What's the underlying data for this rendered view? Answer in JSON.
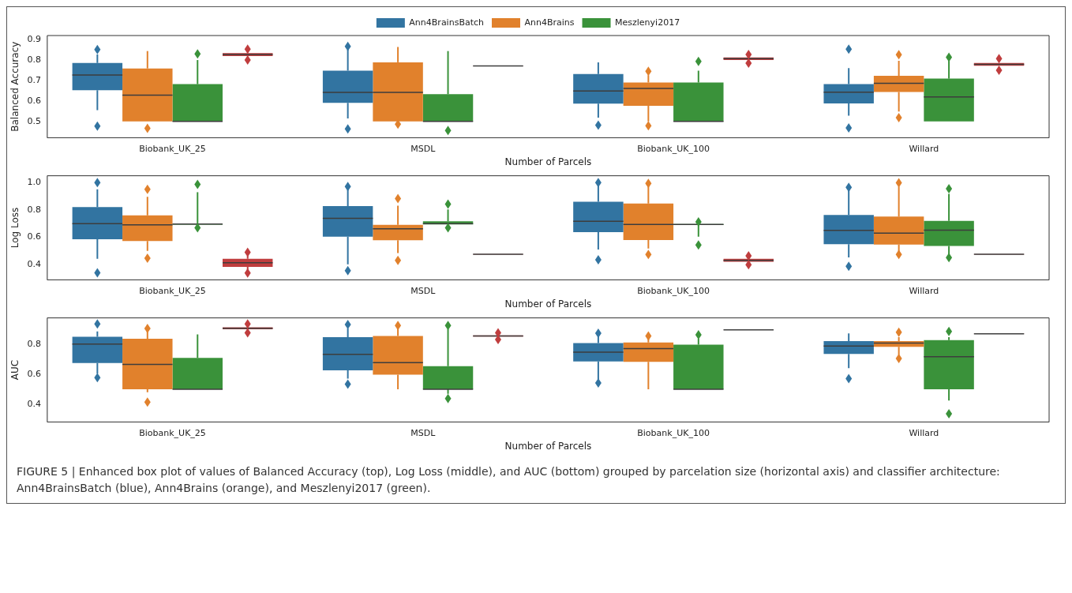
{
  "chart_data": [
    {
      "type": "box",
      "categories": [
        "Biobank_UK_25",
        "MSDL",
        "Biobank_UK_100",
        "Willard"
      ],
      "xlabel": "Number of Parcels",
      "ylabel": "Balanced Accuracy",
      "ylim": [
        0.42,
        0.92
      ],
      "yticks": [
        0.5,
        0.6,
        0.7,
        0.8,
        0.9
      ],
      "legend": "top",
      "series": [
        {
          "name": "Ann4BrainsBatch",
          "color": "#3274a1",
          "boxes": [
            {
              "low": 0.555,
              "q1": 0.652,
              "median": 0.727,
              "q3": 0.786,
              "high": 0.827,
              "outliers": [
                0.477,
                0.851
              ]
            },
            {
              "low": 0.514,
              "q1": 0.591,
              "median": 0.642,
              "q3": 0.748,
              "high": 0.851,
              "outliers": [
                0.463,
                0.867
              ]
            },
            {
              "low": 0.518,
              "q1": 0.587,
              "median": 0.649,
              "q3": 0.732,
              "high": 0.789,
              "outliers": [
                0.481
              ]
            },
            {
              "low": 0.528,
              "q1": 0.588,
              "median": 0.643,
              "q3": 0.682,
              "high": 0.761,
              "outliers": [
                0.468,
                0.853
              ]
            }
          ]
        },
        {
          "name": "Ann4Brains",
          "color": "#e1812c",
          "boxes": [
            {
              "low": 0.5,
              "q1": 0.5,
              "median": 0.628,
              "q3": 0.759,
              "high": 0.844,
              "outliers": [
                0.466
              ]
            },
            {
              "low": 0.5,
              "q1": 0.5,
              "median": 0.642,
              "q3": 0.789,
              "high": 0.864,
              "outliers": [
                0.486
              ]
            },
            {
              "low": 0.5,
              "q1": 0.576,
              "median": 0.661,
              "q3": 0.69,
              "high": 0.726,
              "outliers": [
                0.479,
                0.745
              ]
            },
            {
              "low": 0.548,
              "q1": 0.644,
              "median": 0.686,
              "q3": 0.723,
              "high": 0.796,
              "outliers": [
                0.518,
                0.826
              ]
            }
          ]
        },
        {
          "name": "Meszlenyi2017",
          "color": "#3a923a",
          "boxes": [
            {
              "low": 0.5,
              "q1": 0.5,
              "median": 0.5,
              "q3": 0.682,
              "high": 0.8,
              "outliers": [
                0.83
              ]
            },
            {
              "low": 0.5,
              "q1": 0.5,
              "median": 0.5,
              "q3": 0.633,
              "high": 0.844,
              "outliers": [
                0.455
              ]
            },
            {
              "low": 0.5,
              "q1": 0.5,
              "median": 0.5,
              "q3": 0.69,
              "high": 0.748,
              "outliers": [
                0.793
              ]
            },
            {
              "low": 0.5,
              "q1": 0.5,
              "median": 0.62,
              "q3": 0.709,
              "high": 0.796,
              "outliers": [
                0.814
              ]
            }
          ]
        },
        {
          "color": "#c03d3e",
          "boxes": [
            {
              "low": 0.82,
              "q1": 0.82,
              "median": 0.827,
              "q3": 0.834,
              "high": 0.834,
              "outliers": [
                0.8,
                0.853
              ]
            },
            {
              "low": 0.77,
              "q1": 0.77,
              "median": 0.771,
              "q3": 0.772,
              "high": 0.772
            },
            {
              "low": 0.797,
              "q1": 0.8,
              "median": 0.807,
              "q3": 0.813,
              "high": 0.817,
              "outliers": [
                0.785,
                0.827
              ]
            },
            {
              "low": 0.772,
              "q1": 0.772,
              "median": 0.779,
              "q3": 0.786,
              "high": 0.786,
              "outliers": [
                0.75,
                0.807
              ]
            }
          ]
        }
      ]
    },
    {
      "type": "box",
      "categories": [
        "Biobank_UK_25",
        "MSDL",
        "Biobank_UK_100",
        "Willard"
      ],
      "xlabel": "Number of Parcels",
      "ylabel": "Log Loss",
      "ylim": [
        0.29,
        1.05
      ],
      "yticks": [
        0.4,
        0.6,
        0.8,
        {
          "value": 1,
          "label": "1.0"
        }
      ],
      "series": [
        {
          "color": "#3274a1",
          "boxes": [
            {
              "low": 0.443,
              "q1": 0.586,
              "median": 0.7,
              "q3": 0.821,
              "high": 0.951,
              "outliers": [
                0.342,
                1.0
              ]
            },
            {
              "low": 0.404,
              "q1": 0.605,
              "median": 0.739,
              "q3": 0.828,
              "high": 0.957,
              "outliers": [
                0.357,
                0.972
              ]
            },
            {
              "low": 0.512,
              "q1": 0.638,
              "median": 0.717,
              "q3": 0.86,
              "high": 0.98,
              "outliers": [
                0.437,
                1.0
              ]
            },
            {
              "low": 0.454,
              "q1": 0.551,
              "median": 0.651,
              "q3": 0.763,
              "high": 0.944,
              "outliers": [
                0.389,
                0.966
              ]
            }
          ]
        },
        {
          "color": "#e1812c",
          "boxes": [
            {
              "low": 0.502,
              "q1": 0.573,
              "median": 0.692,
              "q3": 0.761,
              "high": 0.897,
              "outliers": [
                0.448,
                0.951
              ]
            },
            {
              "low": 0.486,
              "q1": 0.579,
              "median": 0.663,
              "q3": 0.692,
              "high": 0.832,
              "outliers": [
                0.432,
                0.884
              ]
            },
            {
              "low": 0.519,
              "q1": 0.581,
              "median": 0.694,
              "q3": 0.847,
              "high": 0.972,
              "outliers": [
                0.476,
                0.994
              ]
            },
            {
              "low": 0.497,
              "q1": 0.547,
              "median": 0.631,
              "q3": 0.752,
              "high": 0.972,
              "outliers": [
                0.476,
                0.998
              ]
            }
          ]
        },
        {
          "color": "#3a923a",
          "boxes": [
            {
              "low": 0.693,
              "q1": 0.693,
              "median": 0.697,
              "q3": 0.701,
              "high": 0.93,
              "outliers": [
                0.67,
                0.987
              ]
            },
            {
              "low": 0.695,
              "q1": 0.695,
              "median": 0.7,
              "q3": 0.717,
              "high": 0.804,
              "outliers": [
                0.67,
                0.843
              ]
            },
            {
              "low": 0.605,
              "q1": 0.69,
              "median": 0.694,
              "q3": 0.698,
              "high": 0.7,
              "outliers": [
                0.545,
                0.713
              ]
            },
            {
              "low": 0.476,
              "q1": 0.538,
              "median": 0.653,
              "q3": 0.72,
              "high": 0.918,
              "outliers": [
                0.452,
                0.955
              ]
            }
          ]
        },
        {
          "color": "#c03d3e",
          "boxes": [
            {
              "low": 0.363,
              "q1": 0.385,
              "median": 0.415,
              "q3": 0.443,
              "high": 0.465,
              "outliers": [
                0.34,
                0.491
              ]
            },
            {
              "low": 0.476,
              "q1": 0.476,
              "median": 0.477,
              "q3": 0.478,
              "high": 0.478
            },
            {
              "low": 0.422,
              "q1": 0.422,
              "median": 0.432,
              "q3": 0.443,
              "high": 0.443,
              "outliers": [
                0.4,
                0.465
              ]
            },
            {
              "low": 0.476,
              "q1": 0.476,
              "median": 0.477,
              "q3": 0.478,
              "high": 0.478
            }
          ]
        }
      ]
    },
    {
      "type": "box",
      "categories": [
        "Biobank_UK_25",
        "MSDL",
        "Biobank_UK_100",
        "Willard"
      ],
      "xlabel": "Number of Parcels",
      "ylabel": "AUC",
      "ylim": [
        0.28,
        0.98
      ],
      "yticks": [
        0.4,
        0.6,
        0.8
      ],
      "annotations": [
        "FIGURE 5 | Enhanced box plot of values of Balanced Accuracy (top), Log Loss (middle), and AUC (bottom) grouped by parcelation size (horizontal axis) and classifier architecture: Ann4BrainsBatch (blue), Ann4Brains (orange), and Meszlenyi2017 (green)."
      ],
      "series": [
        {
          "color": "#3274a1",
          "boxes": [
            {
              "low": 0.606,
              "q1": 0.677,
              "median": 0.804,
              "q3": 0.853,
              "high": 0.889,
              "outliers": [
                0.578,
                0.939
              ]
            },
            {
              "low": 0.572,
              "q1": 0.628,
              "median": 0.735,
              "q3": 0.851,
              "high": 0.909,
              "outliers": [
                0.535,
                0.935
              ]
            },
            {
              "low": 0.566,
              "q1": 0.687,
              "median": 0.75,
              "q3": 0.81,
              "high": 0.86,
              "outliers": [
                0.543,
                0.877
              ]
            },
            {
              "low": 0.642,
              "q1": 0.737,
              "median": 0.79,
              "q3": 0.824,
              "high": 0.875,
              "outliers": [
                0.572
              ]
            }
          ]
        },
        {
          "color": "#e1812c",
          "boxes": [
            {
              "low": 0.48,
              "q1": 0.5,
              "median": 0.667,
              "q3": 0.84,
              "high": 0.889,
              "outliers": [
                0.414,
                0.909
              ]
            },
            {
              "low": 0.5,
              "q1": 0.598,
              "median": 0.679,
              "q3": 0.859,
              "high": 0.915,
              "outliers": [
                0.929
              ]
            },
            {
              "low": 0.5,
              "q1": 0.685,
              "median": 0.774,
              "q3": 0.814,
              "high": 0.85,
              "outliers": [
                0.859
              ]
            },
            {
              "low": 0.731,
              "q1": 0.786,
              "median": 0.81,
              "q3": 0.824,
              "high": 0.85,
              "outliers": [
                0.707,
                0.883
              ]
            }
          ]
        },
        {
          "color": "#3a923a",
          "boxes": [
            {
              "low": 0.5,
              "q1": 0.5,
              "median": 0.5,
              "q3": 0.711,
              "high": 0.869
            },
            {
              "low": 0.47,
              "q1": 0.5,
              "median": 0.5,
              "q3": 0.655,
              "high": 0.905,
              "outliers": [
                0.438,
                0.929
              ]
            },
            {
              "low": 0.5,
              "q1": 0.5,
              "median": 0.5,
              "q3": 0.8,
              "high": 0.84,
              "outliers": [
                0.867
              ]
            },
            {
              "low": 0.424,
              "q1": 0.5,
              "median": 0.719,
              "q3": 0.83,
              "high": 0.85,
              "outliers": [
                0.335,
                0.889
              ]
            }
          ]
        },
        {
          "color": "#c03d3e",
          "boxes": [
            {
              "low": 0.903,
              "q1": 0.903,
              "median": 0.91,
              "q3": 0.917,
              "high": 0.917,
              "outliers": [
                0.879,
                0.939
              ]
            },
            {
              "low": 0.852,
              "q1": 0.855,
              "median": 0.859,
              "q3": 0.862,
              "high": 0.865,
              "outliers": [
                0.834,
                0.879
              ]
            },
            {
              "low": 0.898,
              "q1": 0.898,
              "median": 0.899,
              "q3": 0.9,
              "high": 0.9
            },
            {
              "low": 0.872,
              "q1": 0.872,
              "median": 0.873,
              "q3": 0.874,
              "high": 0.874
            }
          ]
        }
      ]
    }
  ]
}
